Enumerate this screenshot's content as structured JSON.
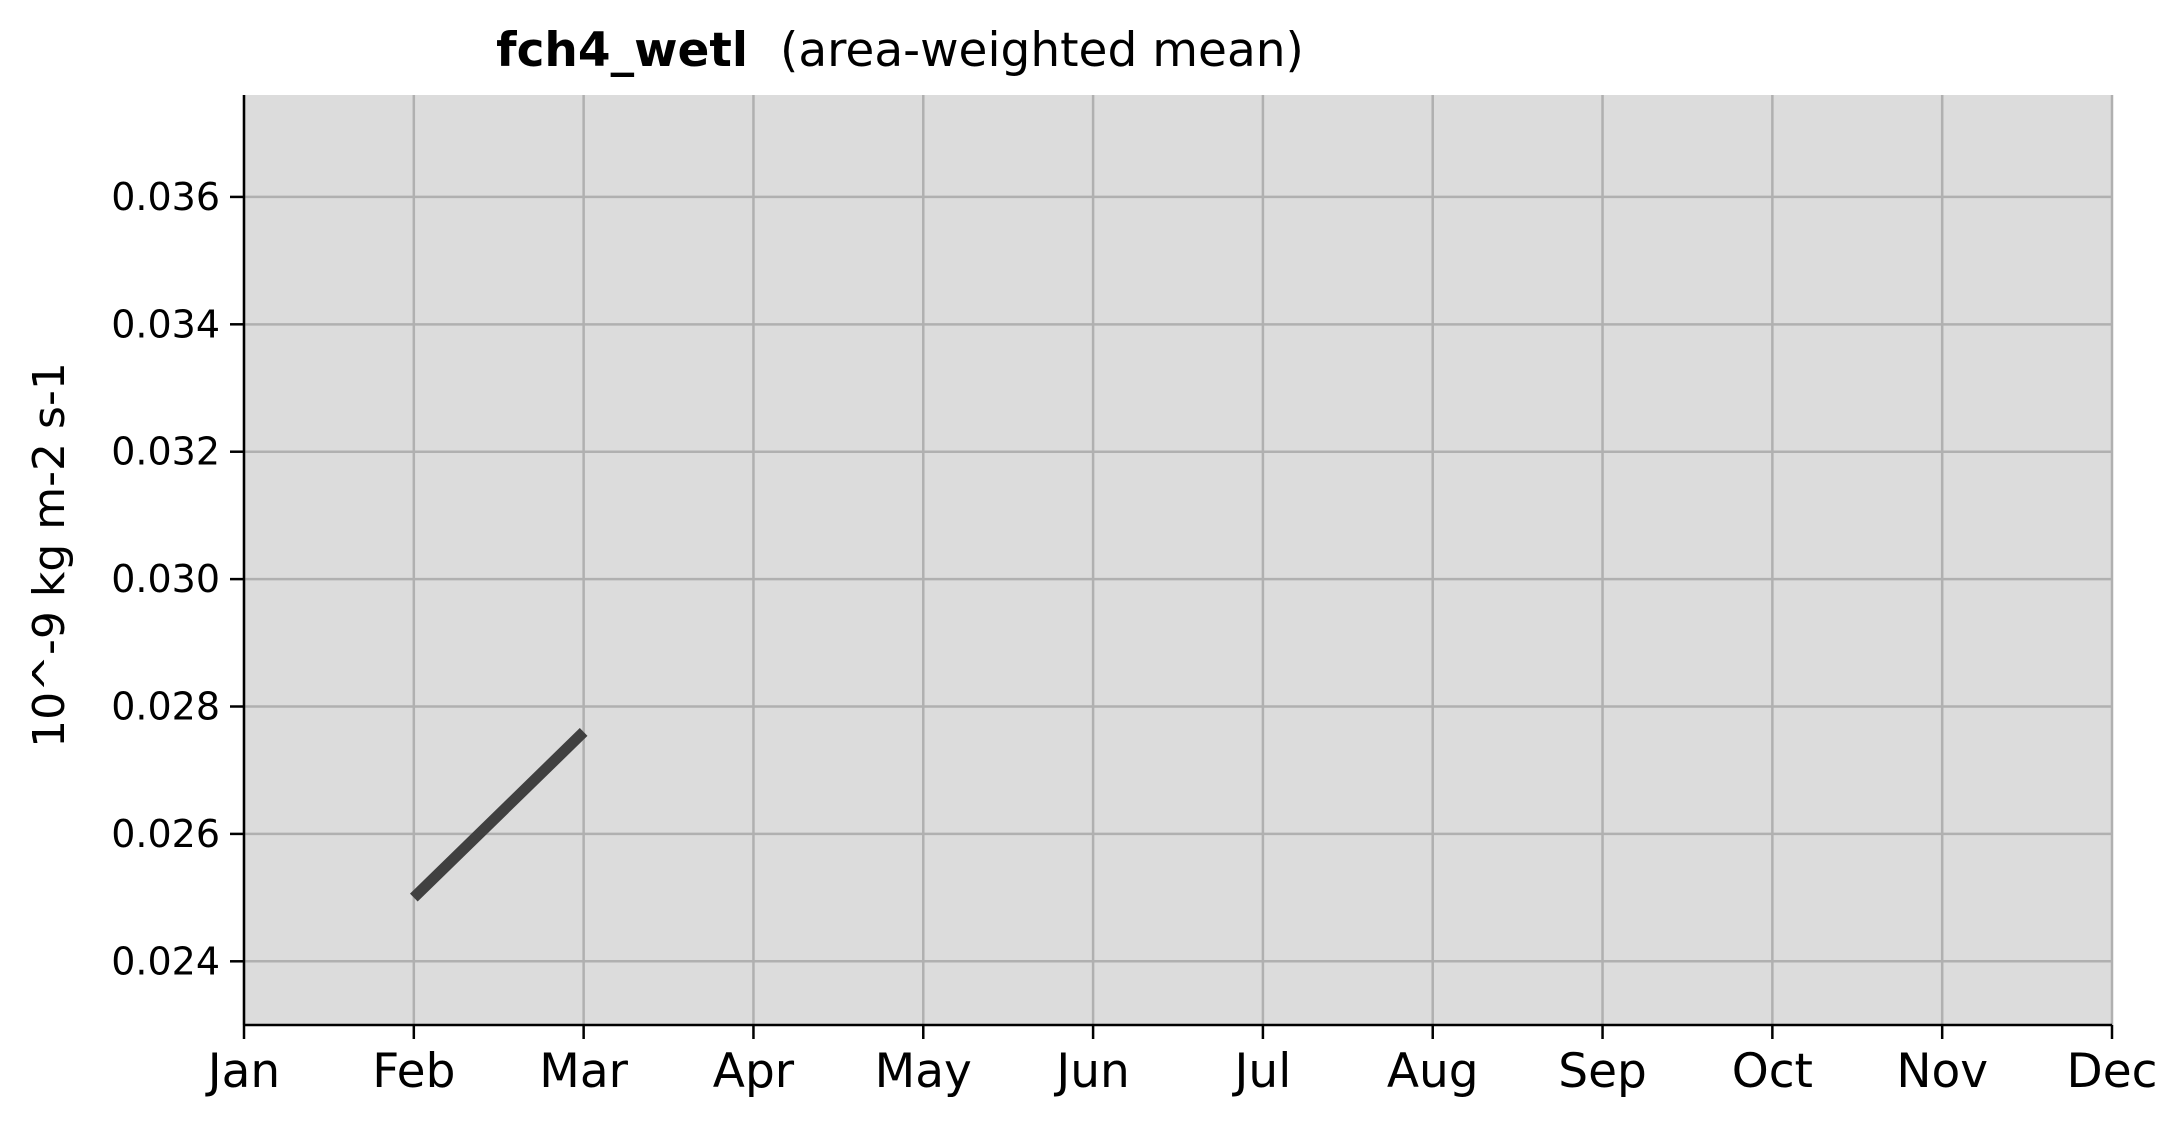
{
  "chart_data": {
    "type": "line",
    "title_var": "fch4_wetl",
    "title_suffix": "(area-weighted mean)",
    "xlabel": "",
    "ylabel": "10^-9 kg m-2 s-1",
    "categories": [
      "Jan",
      "Feb",
      "Mar",
      "Apr",
      "May",
      "Jun",
      "Jul",
      "Aug",
      "Sep",
      "Oct",
      "Nov",
      "Dec"
    ],
    "x": [
      "Feb",
      "Mar"
    ],
    "values": [
      0.025,
      0.0276
    ],
    "ylim": [
      0.023,
      0.0376
    ],
    "yticks": [
      "0.024",
      "0.026",
      "0.028",
      "0.030",
      "0.032",
      "0.034",
      "0.036"
    ],
    "grid": true,
    "colors": {
      "plot_bg": "#dcdcdc",
      "line": "#404040",
      "grid": "#b0b0b0"
    }
  }
}
